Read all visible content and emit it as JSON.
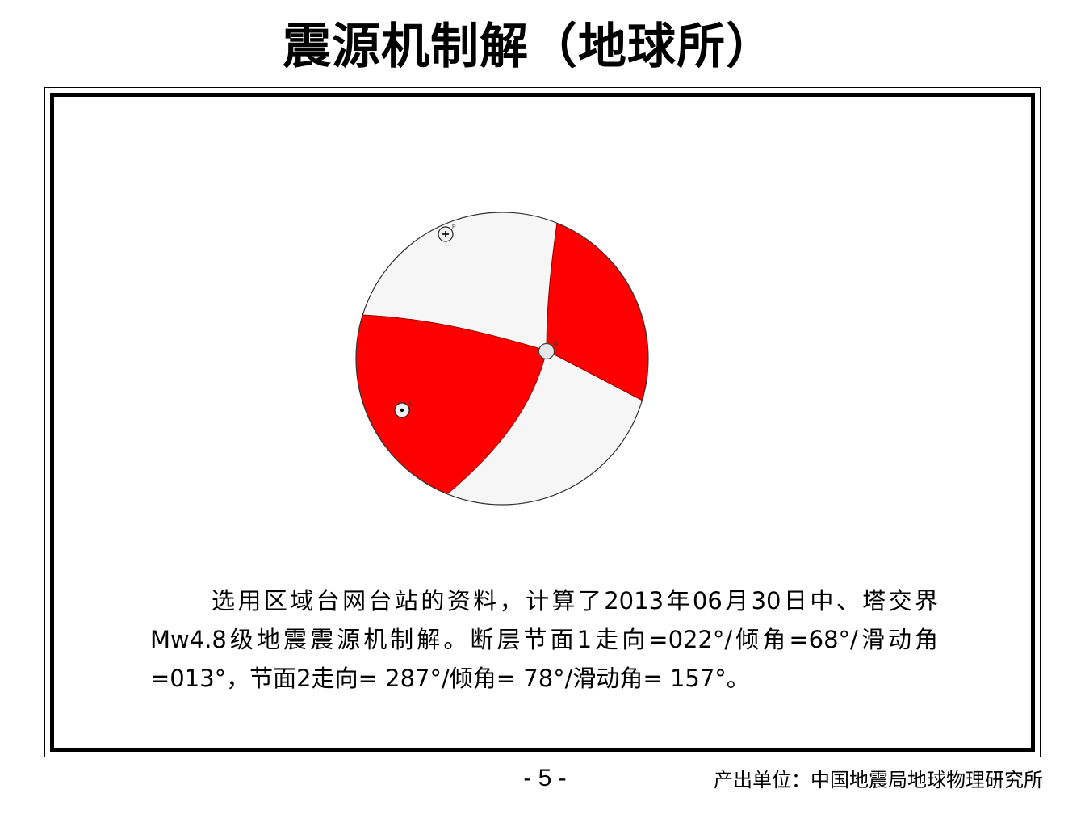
{
  "title": "震源机制解（地球所）",
  "mechanism": {
    "compression_color": "#ff0000",
    "dilatation_color": "#f6f6f6",
    "axis_labels": {
      "p": "P",
      "t": "T",
      "b": "B"
    },
    "nodal_plane_1": {
      "strike": 22,
      "dip": 68,
      "rake": 13
    },
    "nodal_plane_2": {
      "strike": 287,
      "dip": 78,
      "rake": 157
    }
  },
  "description": "选用区域台网台站的资料，计算了2013年06月30日中、塔交界Mw4.8级地震震源机制解。断层节面1走向=022°/倾角=68°/滑动角=013°，节面2走向= 287°/倾角= 78°/滑动角= 157°。",
  "footer": {
    "page_number": "- 5 -",
    "producer": "产出单位：中国地震局地球物理研究所"
  }
}
